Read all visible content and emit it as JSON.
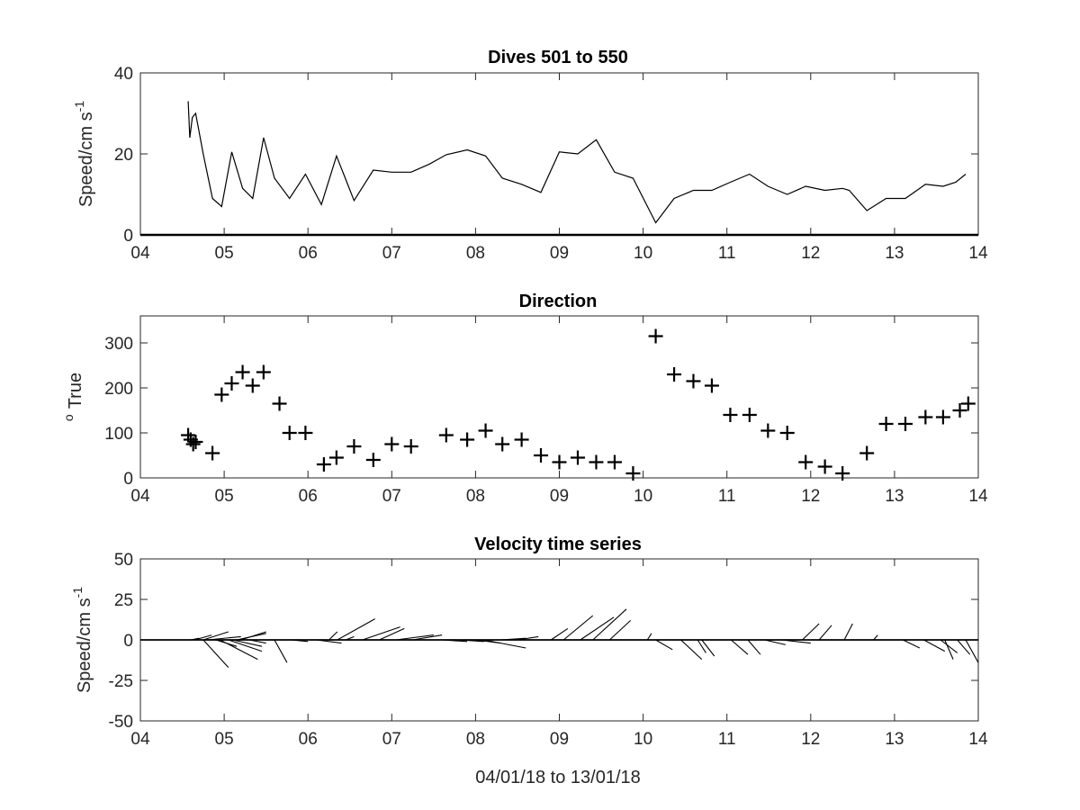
{
  "figure_xlabel": "04/01/18 to 13/01/18",
  "chart_data": [
    {
      "type": "line",
      "title": "Dives 501 to 550",
      "xlabel": "",
      "ylabel": "Speed/cm s",
      "ylabel_sup": "-1",
      "xlim": [
        4,
        14
      ],
      "ylim": [
        0,
        40
      ],
      "xticks": [
        "04",
        "05",
        "06",
        "07",
        "08",
        "09",
        "10",
        "11",
        "12",
        "13",
        "14"
      ],
      "yticks": [
        0,
        20,
        40
      ],
      "grid": false,
      "x": [
        4.57,
        4.59,
        4.62,
        4.66,
        4.75,
        4.86,
        4.97,
        5.09,
        5.22,
        5.34,
        5.47,
        5.6,
        5.78,
        5.97,
        6.16,
        6.34,
        6.55,
        6.78,
        7.0,
        7.23,
        7.45,
        7.65,
        7.9,
        8.12,
        8.32,
        8.55,
        8.78,
        9.0,
        9.22,
        9.44,
        9.66,
        9.88,
        10.15,
        10.37,
        10.6,
        10.82,
        11.04,
        11.27,
        11.49,
        11.72,
        11.94,
        12.17,
        12.38,
        12.46,
        12.67,
        12.9,
        13.13,
        13.37,
        13.58,
        13.73,
        13.85
      ],
      "y": [
        33,
        24,
        29,
        30,
        20,
        9,
        7,
        20.5,
        11.5,
        9,
        24,
        14,
        9,
        15,
        7.5,
        19.5,
        8.5,
        16,
        15.5,
        15.5,
        17.5,
        19.8,
        21,
        19.5,
        14,
        12.5,
        10.5,
        20.5,
        20,
        23.5,
        15.5,
        14,
        3,
        9,
        11,
        11,
        13,
        15,
        12,
        10,
        12,
        11,
        11.5,
        11,
        6,
        9,
        9,
        12.5,
        12,
        13,
        15
      ]
    },
    {
      "type": "scatter",
      "title": "Direction",
      "xlabel": "",
      "ylabel": "True",
      "ylabel_prefix": "o",
      "xlim": [
        4,
        14
      ],
      "ylim": [
        0,
        360
      ],
      "xticks": [
        "04",
        "05",
        "06",
        "07",
        "08",
        "09",
        "10",
        "11",
        "12",
        "13",
        "14"
      ],
      "yticks": [
        0,
        100,
        200,
        300
      ],
      "grid": false,
      "marker": "+",
      "x": [
        4.57,
        4.6,
        4.63,
        4.66,
        4.86,
        4.97,
        5.09,
        5.22,
        5.34,
        5.47,
        5.66,
        5.78,
        5.97,
        6.19,
        6.34,
        6.55,
        6.78,
        7.0,
        7.23,
        7.65,
        7.9,
        8.12,
        8.32,
        8.55,
        8.78,
        9.0,
        9.22,
        9.44,
        9.66,
        9.88,
        10.15,
        10.37,
        10.6,
        10.82,
        11.04,
        11.27,
        11.49,
        11.72,
        11.94,
        12.17,
        12.38,
        12.67,
        12.9,
        13.13,
        13.37,
        13.58,
        13.78,
        13.88
      ],
      "y": [
        95,
        85,
        75,
        80,
        55,
        185,
        210,
        235,
        205,
        235,
        165,
        100,
        100,
        30,
        45,
        70,
        40,
        75,
        70,
        95,
        85,
        105,
        75,
        85,
        50,
        35,
        45,
        35,
        35,
        10,
        315,
        230,
        215,
        205,
        140,
        140,
        105,
        100,
        35,
        25,
        10,
        55,
        120,
        120,
        135,
        135,
        150,
        165
      ]
    },
    {
      "type": "quiver",
      "title": "Velocity time series",
      "xlabel": "04/01/18 to 13/01/18",
      "ylabel": "Speed/cm s",
      "ylabel_sup": "-1",
      "xlim": [
        4,
        14
      ],
      "ylim": [
        -50,
        50
      ],
      "xticks": [
        "04",
        "05",
        "06",
        "07",
        "08",
        "09",
        "10",
        "11",
        "12",
        "13",
        "14"
      ],
      "yticks": [
        50,
        25,
        0,
        -25,
        -50
      ],
      "grid": false,
      "note": "each stick starts at (x, 0); dx in days, dy in cm s-1",
      "sticks": [
        {
          "x": 4.6,
          "dx": 0.1,
          "dy": 1
        },
        {
          "x": 4.65,
          "dx": 0.2,
          "dy": 3
        },
        {
          "x": 4.75,
          "dx": 0.3,
          "dy": 5
        },
        {
          "x": 4.8,
          "dx": 0.4,
          "dy": 2
        },
        {
          "x": 4.9,
          "dx": 0.25,
          "dy": -4
        },
        {
          "x": 4.75,
          "dx": 0.3,
          "dy": -17
        },
        {
          "x": 4.95,
          "dx": 0.45,
          "dy": -12
        },
        {
          "x": 5.05,
          "dx": 0.4,
          "dy": -7
        },
        {
          "x": 5.1,
          "dx": 0.35,
          "dy": -4
        },
        {
          "x": 5.15,
          "dx": 0.35,
          "dy": 4
        },
        {
          "x": 5.2,
          "dx": 0.3,
          "dy": 5
        },
        {
          "x": 5.3,
          "dx": 0.2,
          "dy": -2
        },
        {
          "x": 5.6,
          "dx": 0.15,
          "dy": -14
        },
        {
          "x": 5.8,
          "dx": 0.2,
          "dy": -1
        },
        {
          "x": 6.1,
          "dx": 0.3,
          "dy": -2
        },
        {
          "x": 6.25,
          "dx": 0.1,
          "dy": 5
        },
        {
          "x": 6.35,
          "dx": 0.45,
          "dy": 13
        },
        {
          "x": 6.45,
          "dx": 0.1,
          "dy": 2
        },
        {
          "x": 6.65,
          "dx": 0.45,
          "dy": 8
        },
        {
          "x": 6.85,
          "dx": 0.3,
          "dy": 7
        },
        {
          "x": 7.05,
          "dx": 0.45,
          "dy": 3
        },
        {
          "x": 7.25,
          "dx": 0.35,
          "dy": 3
        },
        {
          "x": 7.6,
          "dx": 0.3,
          "dy": -1
        },
        {
          "x": 7.8,
          "dx": 0.3,
          "dy": -1
        },
        {
          "x": 8.0,
          "dx": 0.3,
          "dy": -2
        },
        {
          "x": 8.1,
          "dx": 0.5,
          "dy": -5
        },
        {
          "x": 8.3,
          "dx": 0.3,
          "dy": 1
        },
        {
          "x": 8.5,
          "dx": 0.25,
          "dy": 2
        },
        {
          "x": 8.9,
          "dx": 0.2,
          "dy": 7
        },
        {
          "x": 9.05,
          "dx": 0.35,
          "dy": 15
        },
        {
          "x": 9.25,
          "dx": 0.4,
          "dy": 14
        },
        {
          "x": 9.4,
          "dx": 0.4,
          "dy": 19
        },
        {
          "x": 9.6,
          "dx": 0.25,
          "dy": 12
        },
        {
          "x": 10.05,
          "dx": 0.05,
          "dy": 4
        },
        {
          "x": 10.15,
          "dx": 0.2,
          "dy": -6
        },
        {
          "x": 10.45,
          "dx": 0.25,
          "dy": -12
        },
        {
          "x": 10.65,
          "dx": 0.1,
          "dy": -8
        },
        {
          "x": 10.7,
          "dx": 0.15,
          "dy": -10
        },
        {
          "x": 11.05,
          "dx": 0.2,
          "dy": -9
        },
        {
          "x": 11.25,
          "dx": 0.15,
          "dy": -9
        },
        {
          "x": 11.45,
          "dx": 0.25,
          "dy": -3
        },
        {
          "x": 11.65,
          "dx": 0.35,
          "dy": -2
        },
        {
          "x": 11.9,
          "dx": 0.2,
          "dy": 10
        },
        {
          "x": 12.1,
          "dx": 0.15,
          "dy": 9
        },
        {
          "x": 12.4,
          "dx": 0.1,
          "dy": 10
        },
        {
          "x": 12.75,
          "dx": 0.05,
          "dy": 3
        },
        {
          "x": 13.1,
          "dx": 0.2,
          "dy": -5
        },
        {
          "x": 13.35,
          "dx": 0.25,
          "dy": -7
        },
        {
          "x": 13.55,
          "dx": 0.2,
          "dy": -8
        },
        {
          "x": 13.6,
          "dx": 0.1,
          "dy": -12
        },
        {
          "x": 13.75,
          "dx": 0.15,
          "dy": -9
        },
        {
          "x": 13.85,
          "dx": 0.15,
          "dy": -14
        }
      ]
    }
  ]
}
